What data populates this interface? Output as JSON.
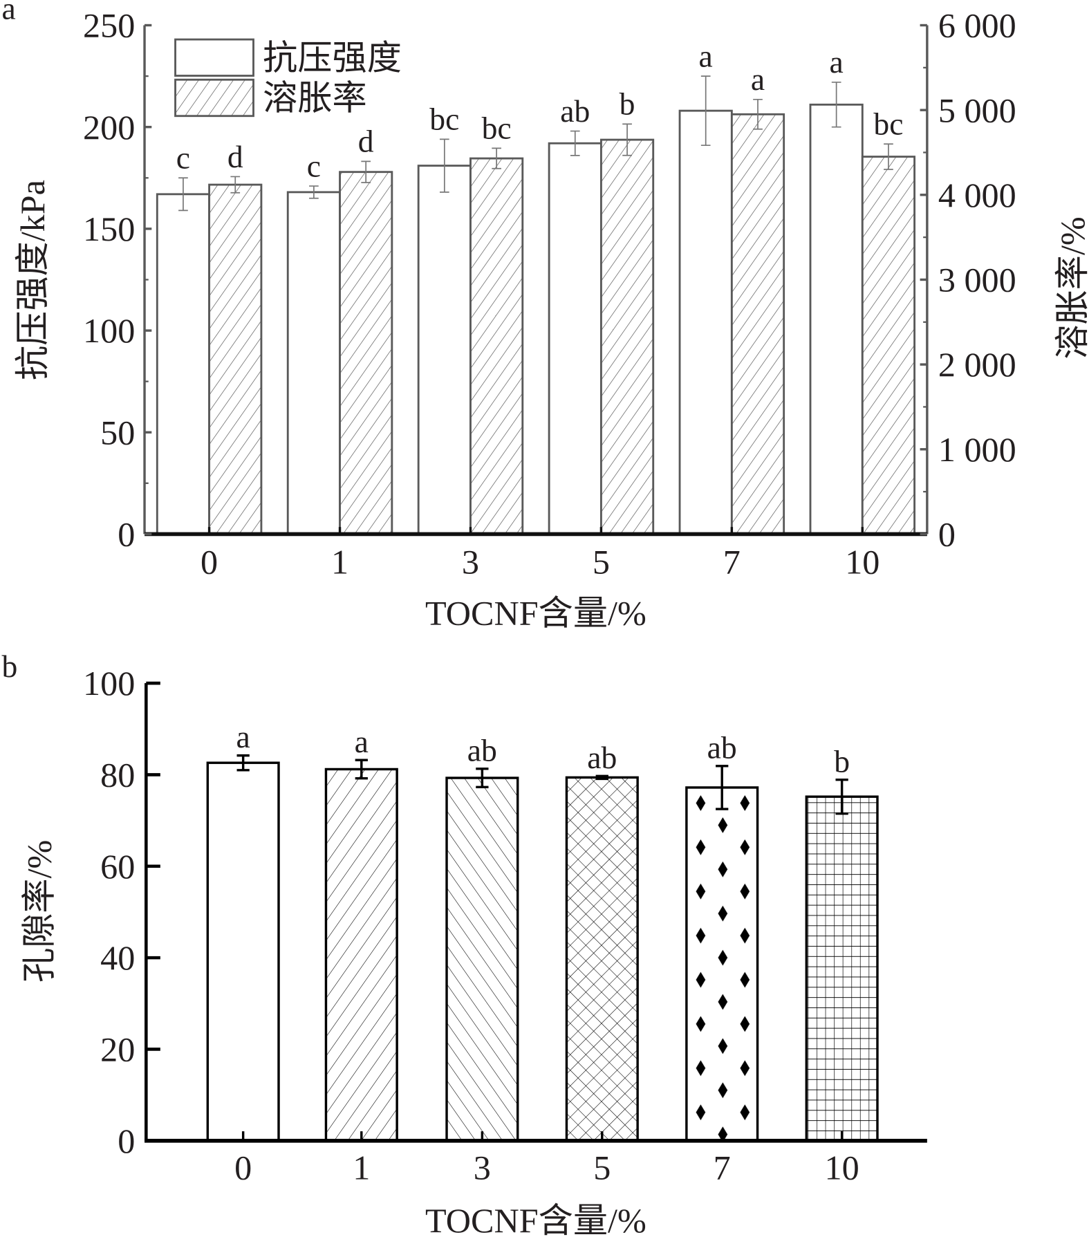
{
  "chart_data": [
    {
      "type": "bar",
      "panel_label": "a",
      "categories": [
        "0",
        "1",
        "3",
        "5",
        "7",
        "10"
      ],
      "xlabel": "TOCNF含量/%",
      "ylabel": "抗压强度/kPa",
      "y2label": "溶胀率/%",
      "ylim": [
        0,
        250
      ],
      "y2lim": [
        0,
        6000
      ],
      "yticks": [
        "0",
        "50",
        "100",
        "150",
        "200",
        "250"
      ],
      "y2ticks": [
        "0",
        "1 000",
        "2 000",
        "3 000",
        "4 000",
        "5 000",
        "6 000"
      ],
      "legend": "top-left",
      "series": [
        {
          "name": "抗压强度",
          "axis": "left",
          "fill": "white",
          "values": [
            167,
            168,
            181,
            192,
            208,
            211
          ],
          "errors": [
            8,
            3,
            13,
            6,
            17,
            11
          ],
          "letters": [
            "c",
            "c",
            "bc",
            "ab",
            "a",
            "a"
          ]
        },
        {
          "name": "溶胀率",
          "axis": "right",
          "fill": "diagonal-hatch",
          "values": [
            4120,
            4270,
            4430,
            4650,
            4950,
            4450
          ],
          "errors": [
            95,
            125,
            120,
            185,
            175,
            150
          ],
          "letters": [
            "d",
            "d",
            "bc",
            "b",
            "a",
            "bc"
          ]
        }
      ],
      "axis_color": "#595959"
    },
    {
      "type": "bar",
      "panel_label": "b",
      "categories": [
        "0",
        "1",
        "3",
        "5",
        "7",
        "10"
      ],
      "xlabel": "TOCNF含量/%",
      "ylabel": "孔隙率/%",
      "ylim": [
        0,
        100
      ],
      "yticks": [
        "0",
        "20",
        "40",
        "60",
        "80",
        "100"
      ],
      "values": [
        82.6,
        81.2,
        79.3,
        79.4,
        77.2,
        75.2
      ],
      "errors": [
        1.6,
        2.0,
        2.0,
        0.3,
        4.7,
        3.7
      ],
      "letters": [
        "a",
        "a",
        "ab",
        "ab",
        "ab",
        "b"
      ],
      "fills": [
        "white",
        "forward-diagonal",
        "back-diagonal",
        "crosshatch",
        "diamonds",
        "grid"
      ],
      "axis_color": "#000000"
    }
  ]
}
